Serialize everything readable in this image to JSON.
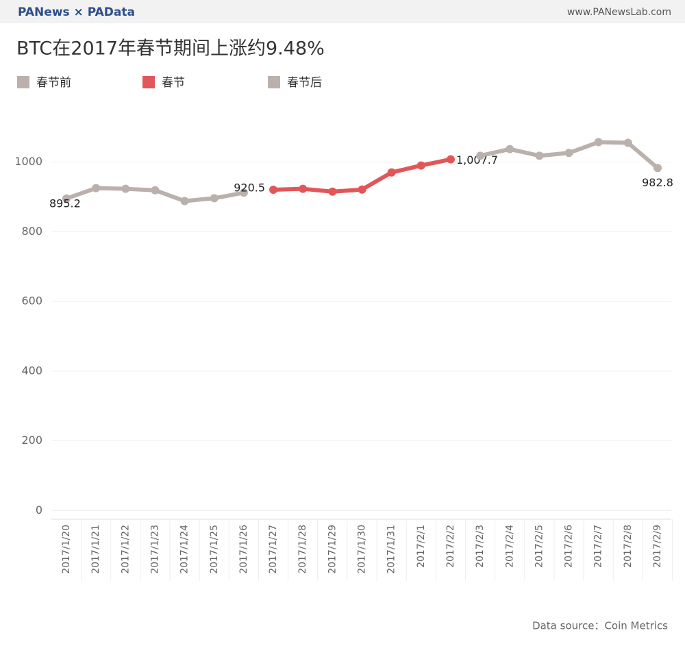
{
  "header": {
    "brand": "PANews × PAData",
    "site": "www.PANewsLab.com"
  },
  "chart_data": {
    "type": "line",
    "title": "BTC在2017年春节期间上涨约9.48%",
    "source": "Data source：Coin Metrics",
    "categories": [
      "2017/1/20",
      "2017/1/21",
      "2017/1/22",
      "2017/1/23",
      "2017/1/24",
      "2017/1/25",
      "2017/1/26",
      "2017/1/27",
      "2017/1/28",
      "2017/1/29",
      "2017/1/30",
      "2017/1/31",
      "2017/2/1",
      "2017/2/2",
      "2017/2/3",
      "2017/2/4",
      "2017/2/5",
      "2017/2/6",
      "2017/2/7",
      "2017/2/8",
      "2017/2/9"
    ],
    "series": [
      {
        "name": "春节前",
        "color": "#bab0ac",
        "values": [
          895.2,
          925,
          923,
          919,
          888,
          896,
          912,
          null,
          null,
          null,
          null,
          null,
          null,
          null,
          null,
          null,
          null,
          null,
          null,
          null,
          null
        ],
        "value_labels": [
          "895.2",
          null,
          null,
          null,
          null,
          null,
          null,
          null,
          null,
          null,
          null,
          null,
          null,
          null,
          null,
          null,
          null,
          null,
          null,
          null,
          null
        ]
      },
      {
        "name": "春节",
        "color": "#e15759",
        "values": [
          null,
          null,
          null,
          null,
          null,
          null,
          null,
          920.5,
          923,
          915,
          921,
          970,
          990,
          1007.7,
          null,
          null,
          null,
          null,
          null,
          null,
          null
        ],
        "value_labels": [
          null,
          null,
          null,
          null,
          null,
          null,
          null,
          "920.5",
          null,
          null,
          null,
          null,
          null,
          "1,007.7",
          null,
          null,
          null,
          null,
          null,
          null,
          null
        ]
      },
      {
        "name": "春节后",
        "color": "#bab0ac",
        "values": [
          null,
          null,
          null,
          null,
          null,
          null,
          null,
          null,
          null,
          null,
          null,
          null,
          null,
          null,
          1018,
          1037,
          1018,
          1026,
          1057,
          1055,
          982.8
        ],
        "value_labels": [
          null,
          null,
          null,
          null,
          null,
          null,
          null,
          null,
          null,
          null,
          null,
          null,
          null,
          null,
          null,
          null,
          null,
          null,
          null,
          null,
          "982.8"
        ]
      }
    ],
    "ylim": [
      -25,
      1115
    ],
    "yticks": [
      0,
      200,
      400,
      600,
      800,
      1000
    ],
    "grid": true
  }
}
